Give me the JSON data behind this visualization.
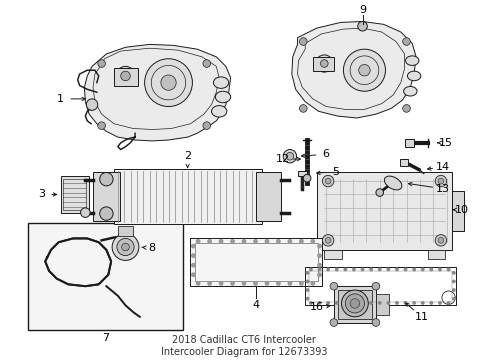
{
  "title": "2018 Cadillac CT6 Intercooler\nIntercooler Diagram for 12673393",
  "bg": "#ffffff",
  "figsize": [
    4.89,
    3.6
  ],
  "dpi": 100,
  "lw": 0.7,
  "gray_light": "#e8e8e8",
  "gray_mid": "#cccccc",
  "gray_dark": "#999999",
  "box7_bg": "#f0f0f0",
  "label_fontsize": 8,
  "title_fontsize": 7
}
